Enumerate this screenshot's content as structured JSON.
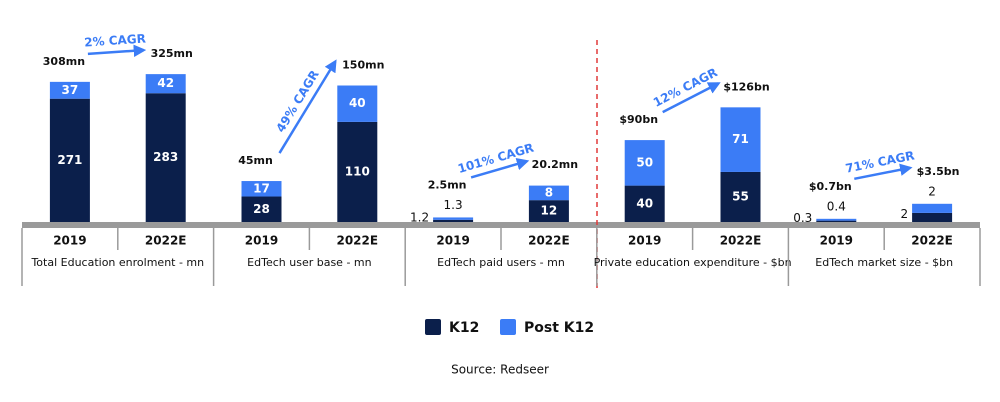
{
  "chart_data": [
    {
      "type": "bar",
      "stacked": true,
      "title": "Total Education enrolment - mn",
      "categories": [
        "2019",
        "2022E"
      ],
      "series": [
        {
          "name": "K12",
          "color": "#0b1f4b",
          "values": [
            271,
            283
          ]
        },
        {
          "name": "Post K12",
          "color": "#3b7cf6",
          "values": [
            37,
            42
          ]
        }
      ],
      "totals": {
        "values": [
          308,
          325
        ],
        "value_labels": [
          "308mn",
          "325mn"
        ]
      },
      "annotation": "2% CAGR",
      "ylim": [
        0,
        400
      ]
    },
    {
      "type": "bar",
      "stacked": true,
      "title": "EdTech user base - mn",
      "categories": [
        "2019",
        "2022E"
      ],
      "series": [
        {
          "name": "K12",
          "color": "#0b1f4b",
          "values": [
            28,
            110
          ]
        },
        {
          "name": "Post K12",
          "color": "#3b7cf6",
          "values": [
            17,
            40
          ]
        }
      ],
      "totals": {
        "values": [
          45,
          150
        ],
        "value_labels": [
          "45mn",
          "150mn"
        ]
      },
      "annotation": "49% CAGR",
      "ylim": [
        0,
        200
      ]
    },
    {
      "type": "bar",
      "stacked": true,
      "title": "EdTech paid users - mn",
      "categories": [
        "2019",
        "2022E"
      ],
      "series": [
        {
          "name": "K12",
          "color": "#0b1f4b",
          "values": [
            1.2,
            12
          ]
        },
        {
          "name": "Post K12",
          "color": "#3b7cf6",
          "values": [
            1.3,
            8
          ]
        }
      ],
      "totals": {
        "values": [
          2.5,
          20.2
        ],
        "value_labels": [
          "2.5mn",
          "20.2mn"
        ]
      },
      "annotation": "101% CAGR",
      "ylim": [
        0,
        100
      ]
    },
    {
      "type": "bar",
      "stacked": true,
      "title": "Private education expenditure - $bn",
      "categories": [
        "2019",
        "2022E"
      ],
      "series": [
        {
          "name": "K12",
          "color": "#0b1f4b",
          "values": [
            40,
            55
          ]
        },
        {
          "name": "Post K12",
          "color": "#3b7cf6",
          "values": [
            50,
            71
          ]
        }
      ],
      "totals": {
        "values": [
          90,
          126
        ],
        "value_labels": [
          "$90bn",
          "$126bn"
        ]
      },
      "annotation": "12% CAGR",
      "ylim": [
        0,
        200
      ]
    },
    {
      "type": "bar",
      "stacked": true,
      "title": "EdTech market size - $bn",
      "categories": [
        "2019",
        "2022E"
      ],
      "series": [
        {
          "name": "K12",
          "color": "#0b1f4b",
          "values": [
            0.3,
            2
          ]
        },
        {
          "name": "Post K12",
          "color": "#3b7cf6",
          "values": [
            0.4,
            2
          ]
        }
      ],
      "totals": {
        "values": [
          0.7,
          3.5
        ],
        "value_labels": [
          "$0.7bn",
          "$3.5bn"
        ]
      },
      "annotation": "71% CAGR",
      "ylim": [
        0,
        40
      ]
    }
  ],
  "source": "Source: Redseer"
}
